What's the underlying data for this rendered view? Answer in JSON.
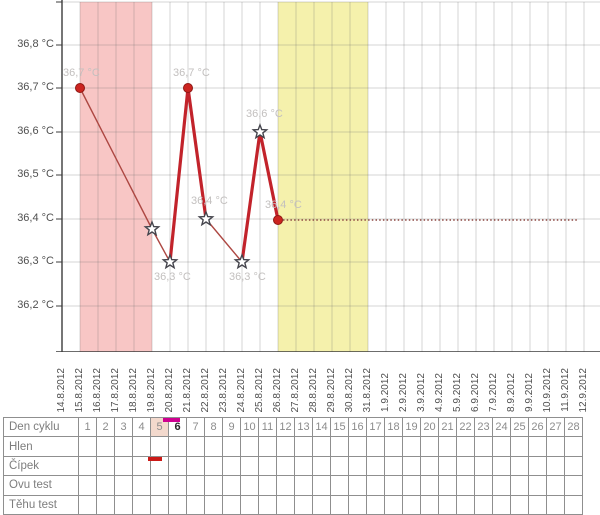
{
  "chart": {
    "y_axis": {
      "labels": [
        "36,8 °C",
        "36,7 °C",
        "36,6 °C",
        "36,5 °C",
        "36,4 °C",
        "36,3 °C",
        "36,2 °C"
      ]
    },
    "x_axis": {
      "dates": [
        "14.8.2012",
        "15.8.2012",
        "16.8.2012",
        "17.8.2012",
        "18.8.2012",
        "19.8.2012",
        "20.8.2012",
        "21.8.2012",
        "22.8.2012",
        "23.8.2012",
        "24.8.2012",
        "25.8.2012",
        "26.8.2012",
        "27.8.2012",
        "28.8.2012",
        "29.8.2012",
        "30.8.2012",
        "31.8.2012",
        "1.9.2012",
        "2.9.2012",
        "3.9.2012",
        "4.9.2012",
        "5.9.2012",
        "6.9.2012",
        "7.9.2012",
        "8.9.2012",
        "9.9.2012",
        "10.9.2012",
        "11.9.2012",
        "12.9.2012"
      ]
    },
    "points": [
      {
        "date": "15.8.2012",
        "value": 36.7,
        "label": "36,7 °C",
        "marker": "dot"
      },
      {
        "date": "19.8.2012",
        "value": 36.38,
        "label": "",
        "marker": "star"
      },
      {
        "date": "20.8.2012",
        "value": 36.3,
        "label": "36,3 °C",
        "marker": "star"
      },
      {
        "date": "21.8.2012",
        "value": 36.7,
        "label": "36,7 °C",
        "marker": "dot"
      },
      {
        "date": "22.8.2012",
        "value": 36.4,
        "label": "36,4 °C",
        "marker": "star"
      },
      {
        "date": "24.8.2012",
        "value": 36.3,
        "label": "36,3 °C",
        "marker": "star"
      },
      {
        "date": "25.8.2012",
        "value": 36.6,
        "label": "36,6 °C",
        "marker": "star"
      },
      {
        "date": "26.8.2012",
        "value": 36.4,
        "label": "36,4 °C",
        "marker": "dot"
      }
    ],
    "projection": {
      "value": 36.4,
      "style": "dotted",
      "end_date": "12.9.2012"
    },
    "regions": [
      {
        "name": "menstruation",
        "start": "15.8.2012",
        "end": "19.8.2012",
        "color": "#f8c6c5"
      },
      {
        "name": "fertile-window",
        "start": "26.8.2012",
        "end": "31.8.2012",
        "color": "#f5f1ac"
      }
    ],
    "colors": {
      "line_thick": "#c2232b",
      "line_thin": "#ad4742",
      "dot": "#cc2420",
      "projection": "#8c4742",
      "point_label": "#c3c0bf"
    }
  },
  "chart_data": {
    "type": "line",
    "x": [
      "15.8.2012",
      "19.8.2012",
      "20.8.2012",
      "21.8.2012",
      "22.8.2012",
      "24.8.2012",
      "25.8.2012",
      "26.8.2012"
    ],
    "y": [
      36.7,
      36.38,
      36.3,
      36.7,
      36.4,
      36.3,
      36.6,
      36.4
    ],
    "point_markers": [
      "dot",
      "star",
      "star",
      "dot",
      "star",
      "star",
      "star",
      "dot"
    ],
    "point_labels": [
      "36,7 °C",
      "",
      "36,3 °C",
      "36,7 °C",
      "36,4 °C",
      "36,3 °C",
      "36,6 °C",
      "36,4 °C"
    ],
    "projection_line": {
      "y": 36.4,
      "x_start": "26.8.2012",
      "x_end": "12.9.2012",
      "style": "dotted"
    },
    "xlabel": "",
    "ylabel": "°C",
    "ylim": [
      36.1,
      36.9
    ],
    "y_axis_ticks": [
      36.8,
      36.7,
      36.6,
      36.5,
      36.4,
      36.3,
      36.2
    ],
    "x_axis_ticks": [
      "14.8.2012",
      "15.8.2012",
      "16.8.2012",
      "17.8.2012",
      "18.8.2012",
      "19.8.2012",
      "20.8.2012",
      "21.8.2012",
      "22.8.2012",
      "23.8.2012",
      "24.8.2012",
      "25.8.2012",
      "26.8.2012",
      "27.8.2012",
      "28.8.2012",
      "29.8.2012",
      "30.8.2012",
      "31.8.2012",
      "1.9.2012",
      "2.9.2012",
      "3.9.2012",
      "4.9.2012",
      "5.9.2012",
      "6.9.2012",
      "7.9.2012",
      "8.9.2012",
      "9.9.2012",
      "10.9.2012",
      "11.9.2012",
      "12.9.2012"
    ],
    "grid": true,
    "shaded_regions": [
      {
        "x_start": "15.8.2012",
        "x_end": "19.8.2012",
        "color": "#f8c6c5"
      },
      {
        "x_start": "26.8.2012",
        "x_end": "31.8.2012",
        "color": "#f5f1ac"
      }
    ]
  },
  "table": {
    "row_labels": [
      "Den cyklu",
      "Hlen",
      "Čípek",
      "Ovu test",
      "Těhu test"
    ],
    "days": [
      "1",
      "2",
      "3",
      "4",
      "5",
      "6",
      "7",
      "8",
      "9",
      "10",
      "11",
      "12",
      "13",
      "14",
      "15",
      "16",
      "17",
      "18",
      "19",
      "20",
      "21",
      "22",
      "23",
      "24",
      "25",
      "26",
      "27",
      "28"
    ],
    "highlighted_day": "5",
    "selected_day": "6",
    "marks": {
      "cervix_mark_day": "5",
      "cervix_mark_color": "#cb1a17",
      "selected_day_bar_color": "#ce0090"
    }
  }
}
